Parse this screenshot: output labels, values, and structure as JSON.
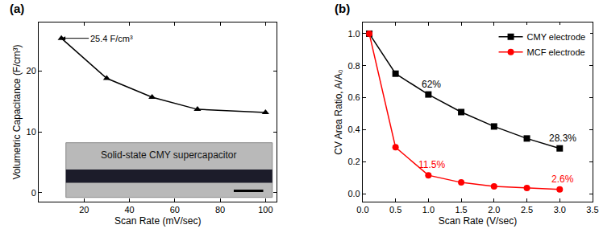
{
  "chart_data": [
    {
      "type": "line",
      "title": "(a)",
      "x_label": "Scan Rate (mV/sec)",
      "y_label": "Volumetric Capacitance (F/cm³)",
      "xlim": [
        0,
        105
      ],
      "xticks": [
        20,
        40,
        60,
        80,
        100
      ],
      "ylim": [
        -1.5,
        28
      ],
      "yticks": [
        0,
        10,
        20
      ],
      "grid": false,
      "series": [
        {
          "name": "Solid-state CMY supercapacitor",
          "color": "#000000",
          "marker": "triangle-up",
          "line_style": "solid",
          "x": [
            10,
            30,
            50,
            70,
            100
          ],
          "values": [
            25.4,
            18.8,
            15.7,
            13.7,
            13.2
          ]
        }
      ],
      "annotations": [
        {
          "text": "25.4 F/cm³",
          "x": 10,
          "y": 25.4,
          "color": "#000000"
        }
      ],
      "inset_label": "Solid-state CMY supercapacitor"
    },
    {
      "type": "line",
      "title": "(b)",
      "x_label": "Scan Rate (V/sec)",
      "y_label": "CV Area Ratio, A/A₀",
      "xlim": [
        0,
        3.5
      ],
      "xticks": [
        {
          "value": 0,
          "label": "0.0"
        },
        0.5,
        {
          "value": 1,
          "label": "1.0"
        },
        1.5,
        {
          "value": 2,
          "label": "2.0"
        },
        2.5,
        {
          "value": 3,
          "label": "3.0"
        },
        3.5
      ],
      "ylim": [
        -0.05,
        1.07
      ],
      "yticks": [
        {
          "value": 0,
          "label": "0.0"
        },
        0.2,
        0.4,
        0.6,
        0.8,
        {
          "value": 1,
          "label": "1.0"
        }
      ],
      "grid": false,
      "legend": "upper right",
      "series": [
        {
          "name": "CMY electrode",
          "color": "#000000",
          "marker": "square",
          "line_style": "solid",
          "x": [
            0.1,
            0.5,
            1.0,
            1.5,
            2.0,
            2.5,
            3.0
          ],
          "values": [
            1.0,
            0.75,
            0.62,
            0.51,
            0.42,
            0.345,
            0.283
          ]
        },
        {
          "name": "MCF electrode",
          "color": "#ff0000",
          "marker": "circle",
          "line_style": "solid",
          "x": [
            0.1,
            0.5,
            1.0,
            1.5,
            2.0,
            2.5,
            3.0
          ],
          "values": [
            1.0,
            0.29,
            0.115,
            0.07,
            0.045,
            0.035,
            0.026
          ]
        }
      ],
      "annotations": [
        {
          "text": "62%",
          "x": 1.0,
          "y": 0.62,
          "color": "#000000"
        },
        {
          "text": "28.3%",
          "x": 3.0,
          "y": 0.283,
          "color": "#000000"
        },
        {
          "text": "11.5%",
          "x": 1.0,
          "y": 0.115,
          "color": "#ff0000"
        },
        {
          "text": "2.6%",
          "x": 3.0,
          "y": 0.026,
          "color": "#ff0000"
        }
      ]
    }
  ]
}
